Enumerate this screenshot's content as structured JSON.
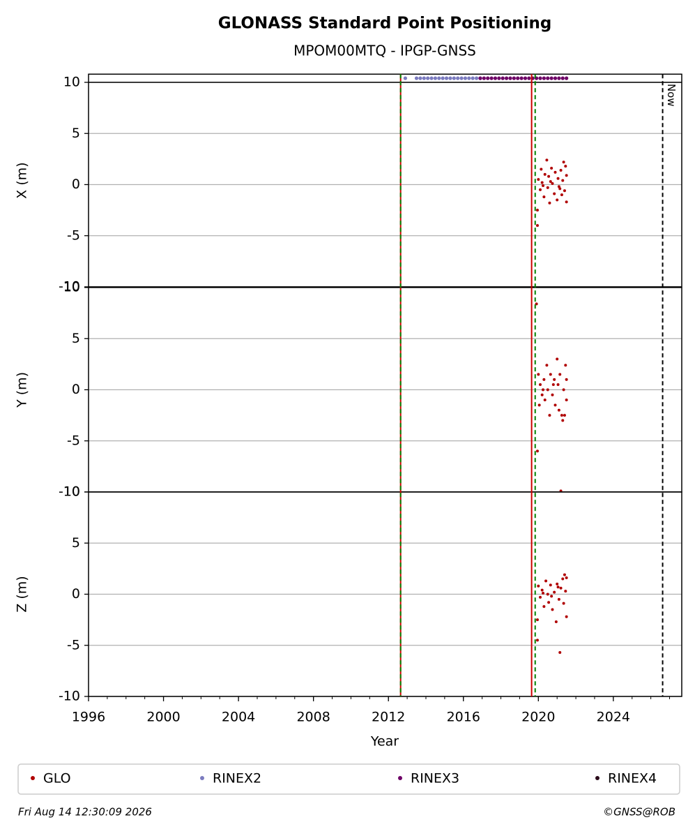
{
  "chart_data": {
    "type": "scatter",
    "title": "GLONASS Standard Point Positioning",
    "subtitle": "MPOM00MTQ - IPGP-GNSS",
    "xlabel": "Year",
    "xlim": [
      1996,
      2027.65
    ],
    "xticks": [
      1996,
      2000,
      2004,
      2008,
      2012,
      2016,
      2020,
      2024
    ],
    "xminor_step": 1,
    "series": [
      {
        "name": "GLO",
        "color": "#b00000"
      },
      {
        "name": "RINEX2",
        "color": "#7b7bbf"
      },
      {
        "name": "RINEX3",
        "color": "#6e0066"
      },
      {
        "name": "RINEX4",
        "color": "#2a0a1a"
      }
    ],
    "legend": "bottom",
    "vlines": [
      {
        "x": 2012.65,
        "color": "#cc0000",
        "dash": false
      },
      {
        "x": 2012.65,
        "color": "#008000",
        "dash": true
      },
      {
        "x": 2019.64,
        "color": "#cc0000",
        "dash": false
      },
      {
        "x": 2019.83,
        "color": "#008000",
        "dash": true
      },
      {
        "x": 2026.63,
        "color": "#000000",
        "dash": true,
        "label": "Now"
      }
    ],
    "panels": [
      {
        "ylabel": "X (m)",
        "ylim": [
          -10,
          10.8
        ],
        "yticks": [
          -10,
          -5,
          0,
          5,
          10
        ],
        "grid": true,
        "hlines": [
          10
        ],
        "layers": [
          {
            "series": 1,
            "x": [
              2012.9,
              2013.5,
              2013.7,
              2013.9,
              2014.1,
              2014.3,
              2014.5,
              2014.7,
              2014.9,
              2015.1,
              2015.3,
              2015.5,
              2015.7,
              2015.9,
              2016.1,
              2016.3,
              2016.5,
              2016.7,
              2016.9
            ],
            "values": [
              10.4,
              10.4,
              10.4,
              10.4,
              10.4,
              10.4,
              10.4,
              10.4,
              10.4,
              10.4,
              10.4,
              10.4,
              10.4,
              10.4,
              10.4,
              10.4,
              10.4,
              10.4,
              10.4
            ]
          },
          {
            "series": 2,
            "x": [
              2016.9,
              2017.1,
              2017.3,
              2017.5,
              2017.7,
              2017.9,
              2018.1,
              2018.3,
              2018.5,
              2018.7,
              2018.9,
              2019.1,
              2019.3,
              2019.5,
              2019.7,
              2019.9,
              2020.1,
              2020.3,
              2020.5,
              2020.7,
              2020.9,
              2021.1,
              2021.3,
              2021.5
            ],
            "values": [
              10.4,
              10.4,
              10.4,
              10.4,
              10.4,
              10.4,
              10.4,
              10.4,
              10.4,
              10.4,
              10.4,
              10.4,
              10.4,
              10.4,
              10.4,
              10.4,
              10.4,
              10.4,
              10.4,
              10.4,
              10.4,
              10.4,
              10.4,
              10.4
            ]
          },
          {
            "series": 0,
            "x": [
              2019.95,
              2019.95,
              2020.0,
              2020.1,
              2020.15,
              2020.2,
              2020.3,
              2020.35,
              2020.45,
              2020.5,
              2020.55,
              2020.6,
              2020.7,
              2020.75,
              2020.85,
              2020.9,
              2021.0,
              2021.05,
              2021.1,
              2021.2,
              2021.25,
              2021.3,
              2021.35,
              2021.4,
              2021.45,
              2021.5,
              2021.5,
              2020.25,
              2020.65,
              2021.15
            ],
            "values": [
              -2.5,
              -4.0,
              0.5,
              -0.5,
              1.5,
              0.2,
              -1.2,
              1.0,
              2.4,
              -0.3,
              0.8,
              -1.8,
              1.6,
              0.1,
              -0.9,
              1.2,
              -1.5,
              0.6,
              -0.2,
              1.4,
              -1.0,
              0.4,
              2.2,
              -0.6,
              1.8,
              -1.7,
              0.9,
              -0.1,
              0.3,
              -0.4
            ]
          }
        ]
      },
      {
        "ylabel": "Y (m)",
        "ylim": [
          -10,
          10
        ],
        "yticks": [
          -10,
          -5,
          0,
          5,
          10
        ],
        "grid": true,
        "layers": [
          {
            "series": 0,
            "x": [
              2019.9,
              2019.95,
              2020.0,
              2020.05,
              2020.1,
              2020.2,
              2020.3,
              2020.35,
              2020.45,
              2020.5,
              2020.6,
              2020.65,
              2020.75,
              2020.85,
              2020.9,
              2021.0,
              2021.05,
              2021.1,
              2021.15,
              2021.2,
              2021.25,
              2021.3,
              2021.35,
              2021.4,
              2021.45,
              2021.5,
              2021.5,
              2020.25,
              2020.8
            ],
            "values": [
              8.4,
              -6.0,
              1.5,
              -1.5,
              0.5,
              -0.5,
              1.0,
              -1.0,
              2.4,
              0.0,
              -2.5,
              1.5,
              -0.5,
              1.0,
              -1.5,
              3.0,
              0.5,
              -2.0,
              1.5,
              -9.9,
              -2.5,
              -3.0,
              0.0,
              -2.5,
              2.4,
              -1.0,
              1.0,
              0.0,
              0.5
            ]
          }
        ]
      },
      {
        "ylabel": "Z (m)",
        "ylim": [
          -10,
          10
        ],
        "yticks": [
          -10,
          -5,
          0,
          5,
          10
        ],
        "grid": true,
        "layers": [
          {
            "series": 0,
            "x": [
              2019.95,
              2019.95,
              2020.0,
              2020.1,
              2020.2,
              2020.3,
              2020.4,
              2020.5,
              2020.55,
              2020.65,
              2020.75,
              2020.85,
              2020.95,
              2021.0,
              2021.1,
              2021.15,
              2021.2,
              2021.3,
              2021.35,
              2021.4,
              2021.45,
              2021.5,
              2021.5,
              2020.25,
              2020.7,
              2021.05
            ],
            "values": [
              -2.5,
              -4.5,
              0.8,
              -0.3,
              0.4,
              -1.2,
              1.3,
              0.0,
              -0.8,
              0.9,
              -1.5,
              0.2,
              -2.7,
              1.0,
              -0.5,
              -5.7,
              0.6,
              1.5,
              -0.9,
              1.9,
              0.3,
              -2.2,
              1.6,
              0.1,
              -0.2,
              0.7
            ]
          }
        ]
      }
    ],
    "footer_left": "Fri Aug 14 12:30:09 2026",
    "footer_right": "©GNSS@ROB"
  }
}
